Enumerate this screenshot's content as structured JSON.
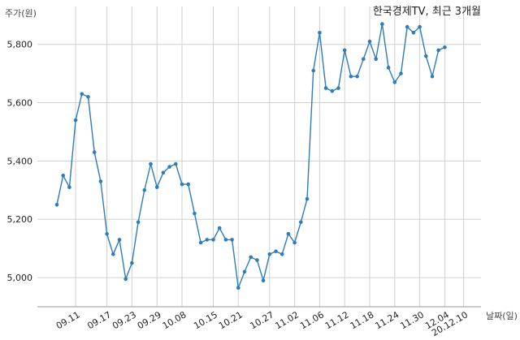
{
  "chart_data": {
    "type": "line",
    "title": "한국경제TV, 최근 3개월",
    "ylabel": "주가(원)",
    "xlabel": "날짜(일)",
    "ylim": [
      4900,
      5930
    ],
    "yticks": [
      5000,
      5200,
      5400,
      5600,
      5800
    ],
    "ytick_labels": [
      "5,000",
      "5,200",
      "5,400",
      "5,600",
      "5,800"
    ],
    "grid": true,
    "xtick_labels": [
      {
        "index": 3,
        "label": "09.11"
      },
      {
        "index": 8,
        "label": "09.17"
      },
      {
        "index": 12,
        "label": "09.23"
      },
      {
        "index": 16,
        "label": "09.29"
      },
      {
        "index": 20,
        "label": "10.08"
      },
      {
        "index": 25,
        "label": "10.15"
      },
      {
        "index": 29,
        "label": "10.21"
      },
      {
        "index": 34,
        "label": "10.27"
      },
      {
        "index": 38,
        "label": "11.02"
      },
      {
        "index": 42,
        "label": "11.06"
      },
      {
        "index": 46,
        "label": "11.12"
      },
      {
        "index": 50,
        "label": "11.18"
      },
      {
        "index": 54,
        "label": "11.24"
      },
      {
        "index": 58,
        "label": "11.30"
      },
      {
        "index": 62,
        "label": "12.04"
      },
      {
        "index": 65,
        "label": "20.12.10"
      }
    ],
    "values": [
      5250,
      5350,
      5310,
      5540,
      5630,
      5620,
      5430,
      5330,
      5150,
      5080,
      5130,
      4995,
      5050,
      5190,
      5300,
      5390,
      5310,
      5360,
      5380,
      5390,
      5320,
      5320,
      5220,
      5120,
      5130,
      5130,
      5170,
      5130,
      5130,
      4965,
      5020,
      5070,
      5060,
      4990,
      5080,
      5090,
      5080,
      5150,
      5120,
      5190,
      5270,
      5710,
      5840,
      5650,
      5640,
      5650,
      5780,
      5690,
      5690,
      5750,
      5810,
      5750,
      5870,
      5720,
      5670,
      5700,
      5860,
      5840,
      5860,
      5760,
      5690,
      5780,
      5790
    ],
    "color": "#2e7cb8"
  }
}
